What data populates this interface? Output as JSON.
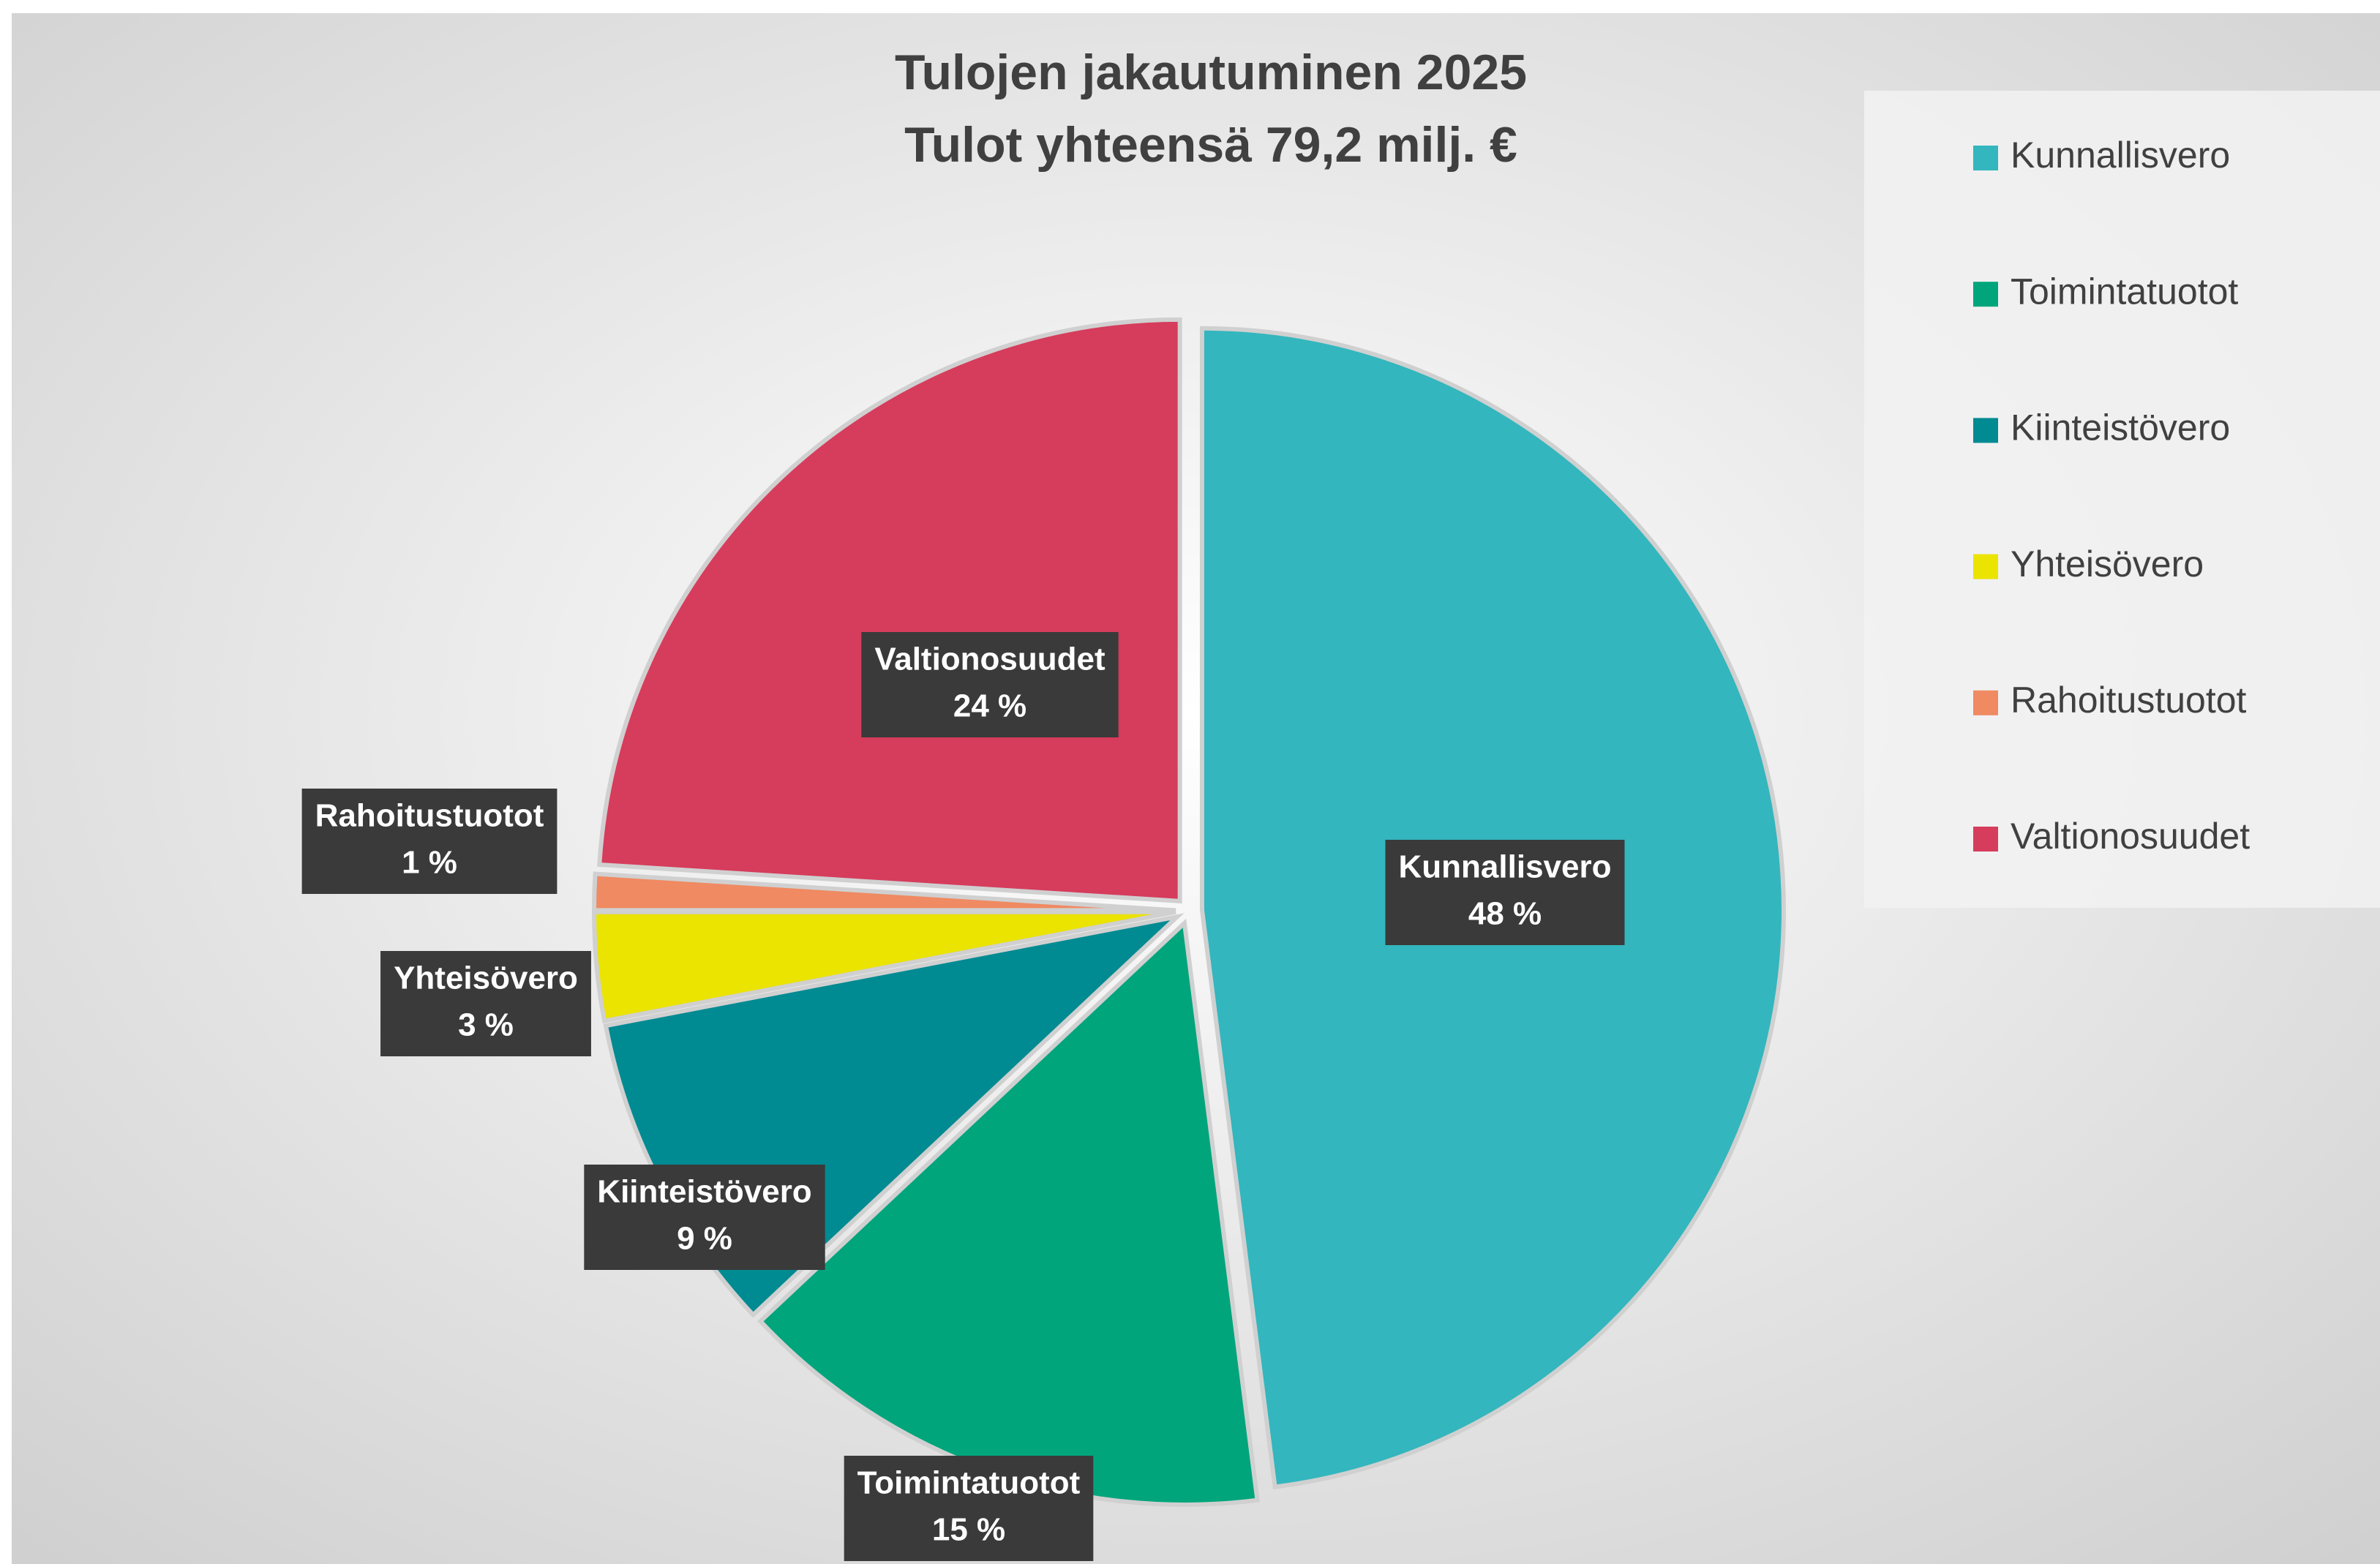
{
  "chart_data": {
    "type": "pie",
    "title": "Tulojen jakautuminen 2025",
    "subtitle": "Tulot yhteensä 79,2 milj. €",
    "categories": [
      "Kunnallisvero",
      "Toimintatuotot",
      "Kiinteistövero",
      "Yhteisövero",
      "Rahoitustuotot",
      "Valtionosuudet"
    ],
    "values": [
      48,
      15,
      9,
      3,
      1,
      24
    ],
    "value_labels": [
      "48 %",
      "15 %",
      "9 %",
      "3 %",
      "1 %",
      "24 %"
    ],
    "colors": [
      "#33b6bd",
      "#00a57c",
      "#008a92",
      "#ebe300",
      "#ef8a62",
      "#d63c5c"
    ],
    "legend": "right"
  }
}
